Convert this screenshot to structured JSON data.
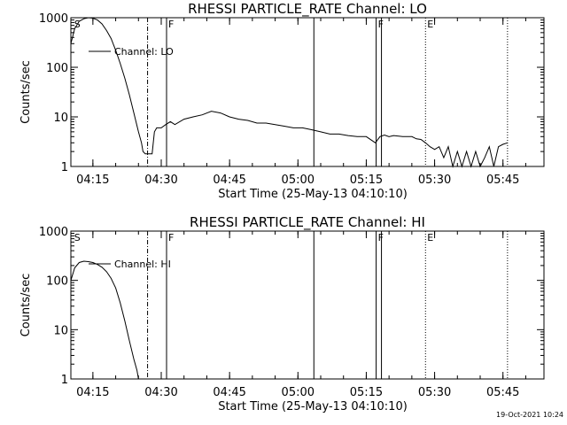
{
  "footer": {
    "timestamp": "19-Oct-2021 10:24"
  },
  "chart_data": [
    {
      "type": "line",
      "title": "RHESSI PARTICLE_RATE Channel: LO",
      "xlabel": "Start Time (25-May-13 04:10:10)",
      "ylabel": "Counts/sec",
      "y_scale": "log",
      "ylim": [
        1,
        1000
      ],
      "xlim": [
        "04:10:10",
        "05:54:00"
      ],
      "x_ticks": [
        "04:15",
        "04:30",
        "04:45",
        "05:00",
        "05:15",
        "05:30",
        "05:45"
      ],
      "y_ticks": [
        "1",
        "10",
        "100",
        "1000"
      ],
      "legend": "Channel: LO",
      "legend_position": "top-left",
      "series": [
        {
          "name": "Channel: LO",
          "x": [
            "04:10:10",
            "04:11:00",
            "04:12:00",
            "04:13:00",
            "04:14:00",
            "04:15:00",
            "04:16:00",
            "04:17:00",
            "04:18:00",
            "04:19:00",
            "04:20:00",
            "04:21:00",
            "04:22:00",
            "04:23:00",
            "04:24:00",
            "04:25:00",
            "04:25:40",
            "04:26:00",
            "04:26:30",
            "04:27:00",
            "04:27:30",
            "04:28:00",
            "04:28:30",
            "04:29:00",
            "04:30:00",
            "04:31:00",
            "04:32:00",
            "04:33:00",
            "04:35:00",
            "04:37:00",
            "04:39:00",
            "04:41:00",
            "04:43:00",
            "04:45:00",
            "04:47:00",
            "04:49:00",
            "04:51:00",
            "04:53:00",
            "04:55:00",
            "04:57:00",
            "04:59:00",
            "05:01:00",
            "05:03:00",
            "05:05:00",
            "05:07:00",
            "05:09:00",
            "05:11:00",
            "05:13:00",
            "05:15:00",
            "05:17:00",
            "05:18:00",
            "05:19:00",
            "05:20:00",
            "05:21:00",
            "05:23:00",
            "05:25:00",
            "05:26:00",
            "05:27:00",
            "05:28:00",
            "05:29:00",
            "05:30:00",
            "05:31:00",
            "05:32:00",
            "05:33:00",
            "05:34:00",
            "05:35:00",
            "05:36:00",
            "05:37:00",
            "05:38:00",
            "05:39:00",
            "05:40:00",
            "05:41:00",
            "05:42:00",
            "05:43:00",
            "05:44:00",
            "05:45:00",
            "05:46:00"
          ],
          "values": [
            300,
            600,
            850,
            950,
            1000,
            980,
            900,
            750,
            550,
            380,
            220,
            120,
            60,
            28,
            12,
            5,
            3,
            2,
            1.8,
            1.8,
            1.8,
            1.8,
            5,
            6,
            6,
            7,
            8,
            7,
            9,
            10,
            11,
            13,
            12,
            10,
            9,
            8.5,
            7.5,
            7.5,
            7,
            6.5,
            6,
            6,
            5.5,
            5,
            4.5,
            4.5,
            4.2,
            4,
            4,
            3,
            4,
            4.3,
            4,
            4.2,
            4,
            4,
            3.6,
            3.5,
            3,
            2.5,
            2.2,
            2.5,
            1.5,
            2.5,
            1,
            2,
            1,
            2,
            1,
            2,
            1,
            1.5,
            2.5,
            1,
            2.5,
            2.8,
            3
          ]
        }
      ],
      "markers": [
        {
          "time": "04:10:30",
          "label": "S",
          "style": "none"
        },
        {
          "time": "04:27:00",
          "label": "",
          "style": "dash-dot"
        },
        {
          "time": "04:31:10",
          "label": "F",
          "style": "solid"
        },
        {
          "time": "05:03:30",
          "label": "",
          "style": "solid"
        },
        {
          "time": "05:17:10",
          "label": "F",
          "style": "solid"
        },
        {
          "time": "05:18:20",
          "label": "",
          "style": "solid"
        },
        {
          "time": "05:28:00",
          "label": "E",
          "style": "dotted"
        },
        {
          "time": "05:46:00",
          "label": "",
          "style": "dotted"
        }
      ]
    },
    {
      "type": "line",
      "title": "RHESSI PARTICLE_RATE Channel: HI",
      "xlabel": "Start Time (25-May-13 04:10:10)",
      "ylabel": "Counts/sec",
      "y_scale": "log",
      "ylim": [
        1,
        1000
      ],
      "xlim": [
        "04:10:10",
        "05:54:00"
      ],
      "x_ticks": [
        "04:15",
        "04:30",
        "04:45",
        "05:00",
        "05:15",
        "05:30",
        "05:45"
      ],
      "y_ticks": [
        "1",
        "10",
        "100",
        "1000"
      ],
      "legend": "Channel: HI",
      "legend_position": "top-left",
      "series": [
        {
          "name": "Channel: HI",
          "x": [
            "04:10:10",
            "04:11:00",
            "04:12:00",
            "04:13:00",
            "04:14:00",
            "04:15:00",
            "04:16:00",
            "04:17:00",
            "04:18:00",
            "04:19:00",
            "04:20:00",
            "04:21:00",
            "04:22:00",
            "04:23:00",
            "04:24:00",
            "04:24:40",
            "04:25:00"
          ],
          "values": [
            100,
            180,
            230,
            245,
            240,
            230,
            210,
            185,
            150,
            110,
            70,
            35,
            15,
            6,
            2.5,
            1.5,
            1
          ]
        }
      ],
      "markers": [
        {
          "time": "04:10:30",
          "label": "S",
          "style": "none"
        },
        {
          "time": "04:27:00",
          "label": "",
          "style": "dash-dot"
        },
        {
          "time": "04:31:10",
          "label": "F",
          "style": "solid"
        },
        {
          "time": "05:03:30",
          "label": "",
          "style": "solid"
        },
        {
          "time": "05:17:10",
          "label": "F",
          "style": "solid"
        },
        {
          "time": "05:18:20",
          "label": "",
          "style": "solid"
        },
        {
          "time": "05:28:00",
          "label": "E",
          "style": "dotted"
        },
        {
          "time": "05:46:00",
          "label": "",
          "style": "dotted"
        }
      ]
    }
  ]
}
